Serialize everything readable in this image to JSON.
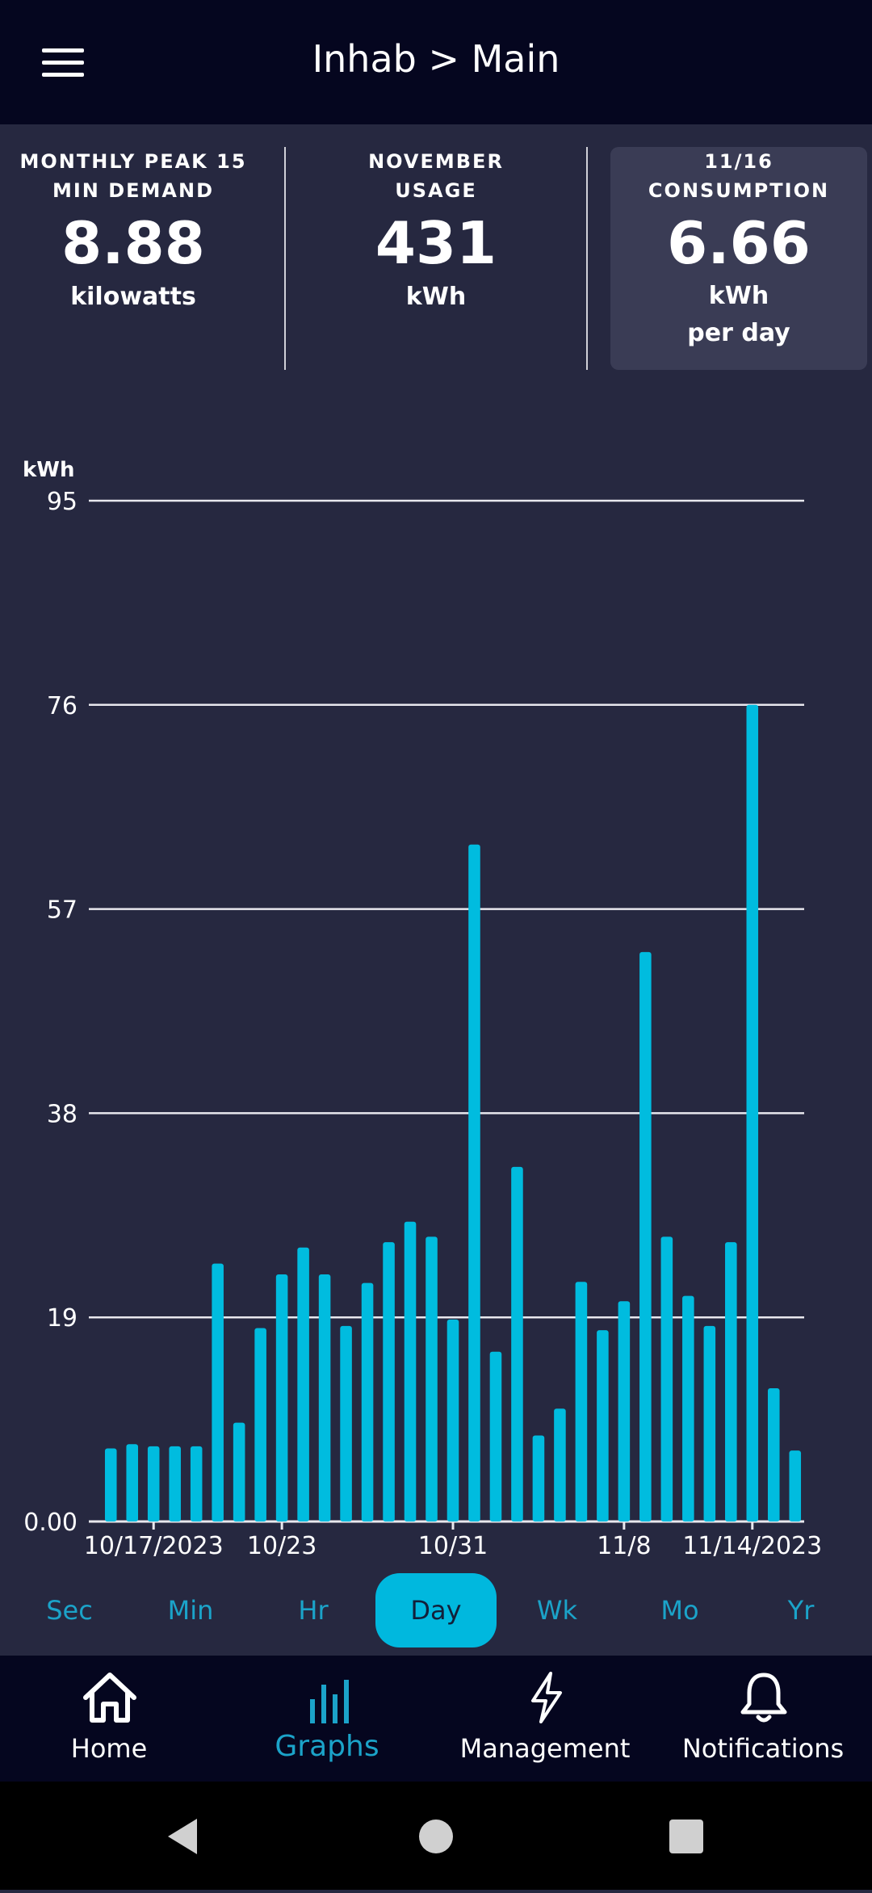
{
  "header": {
    "title": "Inhab > Main"
  },
  "stats": [
    {
      "label_line1": "MONTHLY PEAK 15",
      "label_line2": "MIN DEMAND",
      "value": "8.88",
      "unit": "kilowatts",
      "unit2": ""
    },
    {
      "label_line1": "NOVEMBER",
      "label_line2": "USAGE",
      "value": "431",
      "unit": "kWh",
      "unit2": ""
    },
    {
      "label_line1": "11/16",
      "label_line2": "CONSUMPTION",
      "value": "6.66",
      "unit": "kWh",
      "unit2": "per day"
    }
  ],
  "chart_data": {
    "type": "bar",
    "ylabel": "kWh",
    "ylim": [
      0,
      95
    ],
    "y_ticks": [
      "0.00",
      "19",
      "38",
      "57",
      "76",
      "95"
    ],
    "x_tick_labels": [
      "10/17/2023",
      "10/23",
      "10/31",
      "11/8",
      "11/14/2023"
    ],
    "x_tick_indices": [
      2,
      8,
      16,
      24,
      30
    ],
    "categories": [
      "10/15",
      "10/16",
      "10/17",
      "10/18",
      "10/19",
      "10/20",
      "10/21",
      "10/22",
      "10/23",
      "10/24",
      "10/25",
      "10/26",
      "10/27",
      "10/28",
      "10/29",
      "10/30",
      "10/31",
      "11/1",
      "11/2",
      "11/3",
      "11/4",
      "11/5",
      "11/6",
      "11/7",
      "11/8",
      "11/9",
      "11/10",
      "11/11",
      "11/12",
      "11/13",
      "11/14",
      "11/15",
      "11/16"
    ],
    "values": [
      6.8,
      7.2,
      7.0,
      7.0,
      7.0,
      24.0,
      9.2,
      18.0,
      23.0,
      25.5,
      23.0,
      18.2,
      22.2,
      26.0,
      27.9,
      26.5,
      18.8,
      63.0,
      15.8,
      33.0,
      8.0,
      10.5,
      22.3,
      17.8,
      20.5,
      53.0,
      26.5,
      21.0,
      18.2,
      26.0,
      76.0,
      12.4,
      6.6
    ],
    "bar_color": "#00bcdf",
    "grid": true
  },
  "tabs": [
    "Sec",
    "Min",
    "Hr",
    "Day",
    "Wk",
    "Mo",
    "Yr"
  ],
  "active_tab": "Day",
  "nav": [
    {
      "label": "Home",
      "icon": "home-icon"
    },
    {
      "label": "Graphs",
      "icon": "bar-chart-icon"
    },
    {
      "label": "Management",
      "icon": "lightning-icon"
    },
    {
      "label": "Notifications",
      "icon": "bell-icon"
    }
  ],
  "colors": {
    "accent": "#00b8de",
    "header_bg": "#05061f",
    "page_bg": "#262840"
  }
}
